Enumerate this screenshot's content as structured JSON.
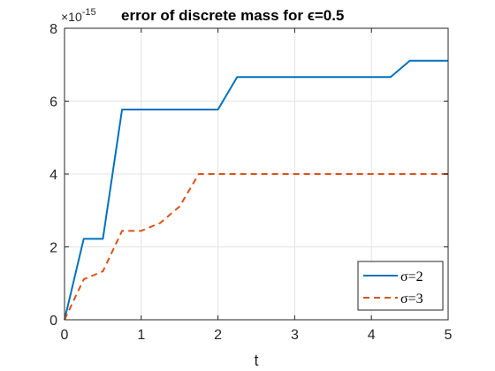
{
  "chart_data": {
    "type": "line",
    "title": "error of discrete mass for ϵ=0.5",
    "xlabel": "t",
    "ylabel": "",
    "y_exponent_label": "×10",
    "y_exponent_power": "-15",
    "xlim": [
      0,
      5
    ],
    "ylim": [
      0,
      8
    ],
    "x_ticks": [
      "0",
      "1",
      "2",
      "3",
      "4",
      "5"
    ],
    "y_ticks": [
      "0",
      "2",
      "4",
      "6",
      "8"
    ],
    "grid": true,
    "legend_position": "bottom-right",
    "series": [
      {
        "name": "σ=2",
        "color": "#0072BD",
        "style": "solid",
        "x": [
          0,
          0.25,
          0.5,
          0.75,
          1.0,
          1.25,
          1.5,
          1.75,
          2.0,
          2.25,
          2.5,
          2.75,
          3.0,
          3.25,
          3.5,
          3.75,
          4.0,
          4.25,
          4.5,
          4.75,
          5.0
        ],
        "y": [
          0,
          2.22,
          2.22,
          5.77,
          5.77,
          5.77,
          5.77,
          5.77,
          5.77,
          6.66,
          6.66,
          6.66,
          6.66,
          6.66,
          6.66,
          6.66,
          6.66,
          6.66,
          7.11,
          7.11,
          7.11
        ]
      },
      {
        "name": "σ=3",
        "color": "#D95319",
        "style": "dashed",
        "x": [
          0,
          0.25,
          0.5,
          0.75,
          1.0,
          1.25,
          1.5,
          1.75,
          2.0,
          2.25,
          2.5,
          2.75,
          3.0,
          3.25,
          3.5,
          3.75,
          4.0,
          4.25,
          4.5,
          4.75,
          5.0
        ],
        "y": [
          0,
          1.11,
          1.33,
          2.44,
          2.44,
          2.66,
          3.11,
          4.0,
          4.0,
          4.0,
          4.0,
          4.0,
          4.0,
          4.0,
          4.0,
          4.0,
          4.0,
          4.0,
          4.0,
          4.0,
          4.0
        ]
      }
    ]
  }
}
